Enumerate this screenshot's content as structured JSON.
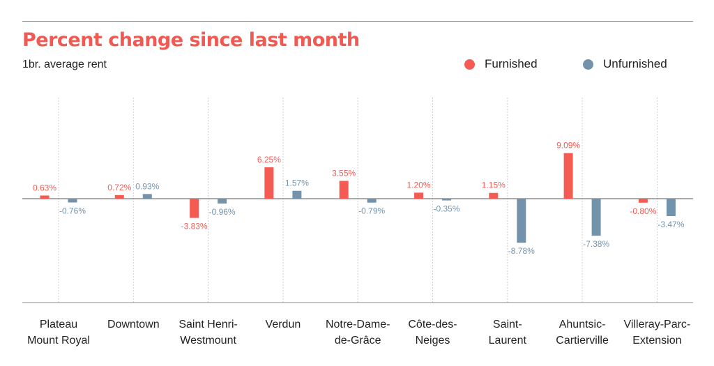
{
  "title": "Percent change since last month",
  "subtitle": "1br. average rent",
  "colors": {
    "furnished": "#f45b53",
    "unfurnished": "#7393ac",
    "title": "#f05a52"
  },
  "chart_data": {
    "type": "bar",
    "categories": [
      "Plateau\nMount Royal",
      "Downtown",
      "Saint Henri-\nWestmount",
      "Verdun",
      "Notre-Dame-\nde-Grâce",
      "Côte-des-\nNeiges",
      "Saint-\nLaurent",
      "Ahuntsic-\nCartierville",
      "Villeray-Parc-\nExtension"
    ],
    "series": [
      {
        "name": "Furnished",
        "values": [
          0.63,
          0.72,
          -3.83,
          6.25,
          3.55,
          1.2,
          1.15,
          9.09,
          -0.8
        ],
        "labels": [
          "0.63%",
          "0.72%",
          "-3.83%",
          "6.25%",
          "3.55%",
          "1.20%",
          "1.15%",
          "9.09%",
          "-0.80%"
        ]
      },
      {
        "name": "Unfurnished",
        "values": [
          -0.76,
          0.93,
          -0.96,
          1.57,
          -0.79,
          -0.35,
          -8.78,
          -7.38,
          -3.47
        ],
        "labels": [
          "-0.76%",
          "0.93%",
          "-0.96%",
          "1.57%",
          "-0.79%",
          "-0.35%",
          "-8.78%",
          "-7.38%",
          "-3.47%"
        ]
      }
    ],
    "ylim": [
      -20.5,
      20.5
    ],
    "grid": "vertical dashed between categories",
    "legend_position": "top-right"
  }
}
